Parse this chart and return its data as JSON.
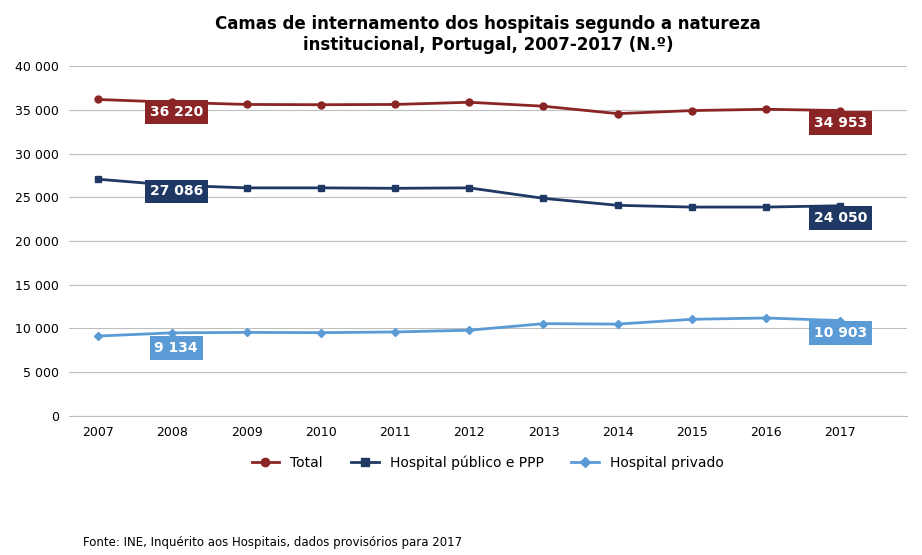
{
  "title": "Camas de internamento dos hospitais segundo a natureza\ninstitucional, Portugal, 2007-2017 (N.º)",
  "years": [
    2007,
    2008,
    2009,
    2010,
    2011,
    2012,
    2013,
    2014,
    2015,
    2016,
    2017
  ],
  "total": [
    36220,
    35900,
    35650,
    35620,
    35650,
    35900,
    35450,
    34600,
    34950,
    35100,
    34953
  ],
  "publico": [
    27086,
    26400,
    26100,
    26100,
    26050,
    26100,
    24900,
    24100,
    23900,
    23900,
    24050
  ],
  "privado": [
    9134,
    9500,
    9550,
    9520,
    9600,
    9800,
    10550,
    10500,
    11050,
    11200,
    10903
  ],
  "label_first_total": "36 220",
  "label_last_total": "34 953",
  "label_first_publico": "27 086",
  "label_last_publico": "24 050",
  "label_first_privado": "9 134",
  "label_last_privado": "10 903",
  "color_total": "#8B2525",
  "color_publico": "#1F3864",
  "color_privado": "#5B9BD5",
  "ylim": [
    0,
    40000
  ],
  "yticks": [
    0,
    5000,
    10000,
    15000,
    20000,
    25000,
    30000,
    35000,
    40000
  ],
  "ytick_labels": [
    "0",
    "5 000",
    "10 000",
    "15 000",
    "20 000",
    "25 000",
    "30 000",
    "35 000",
    "40 000"
  ],
  "legend_labels": [
    "Total",
    "Hospital público e PPP",
    "Hospital privado"
  ],
  "footnote": "Fonte: INE, Inquérito aos Hospitais, dados provisórios para 2017",
  "bg_color": "#FFFFFF",
  "grid_color": "#BEBEBE",
  "label_fontsize": 10,
  "axis_fontsize": 9,
  "title_fontsize": 12
}
